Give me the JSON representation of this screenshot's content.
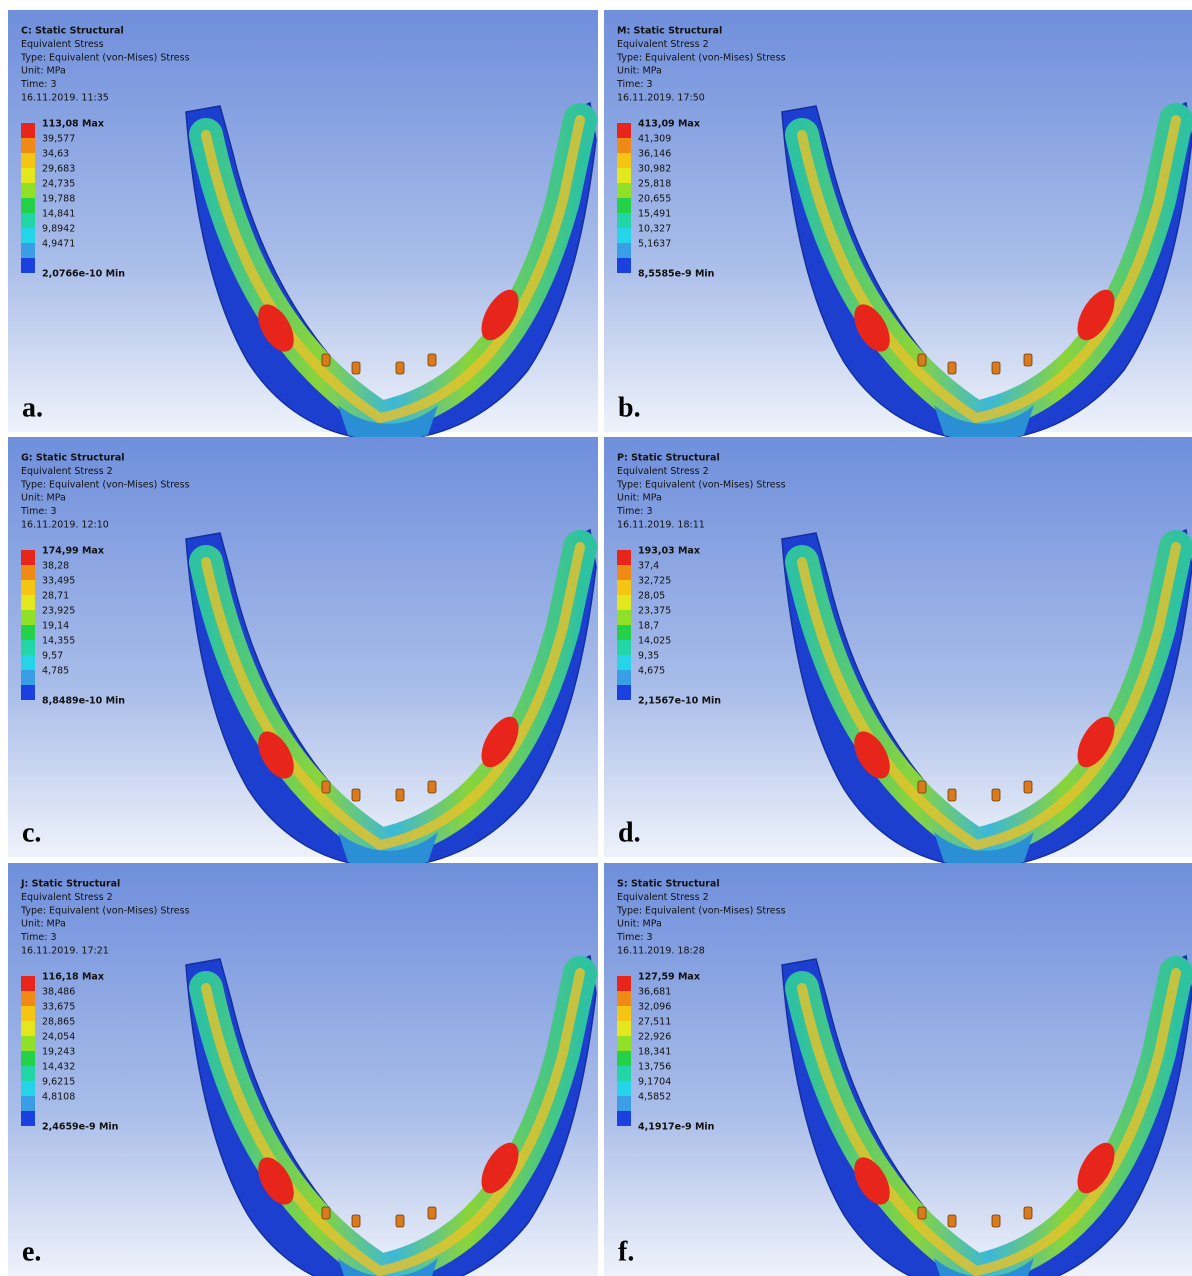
{
  "panels": [
    {
      "title": "C: Static Structural",
      "result": "Equivalent Stress",
      "type": "Type: Equivalent (von-Mises) Stress",
      "unit": "Unit: MPa",
      "time": "Time: 3",
      "date": "16.11.2019. 11:35",
      "max": "113,08 Max",
      "levels": [
        "39,577",
        "34,63",
        "29,683",
        "24,735",
        "19,788",
        "14,841",
        "9,8942",
        "4,9471"
      ],
      "min": "2,0766e-10 Min",
      "label": "a."
    },
    {
      "title": "M: Static Structural",
      "result": "Equivalent Stress 2",
      "type": "Type: Equivalent (von-Mises) Stress",
      "unit": "Unit: MPa",
      "time": "Time: 3",
      "date": "16.11.2019. 17:50",
      "max": "413,09 Max",
      "levels": [
        "41,309",
        "36,146",
        "30,982",
        "25,818",
        "20,655",
        "15,491",
        "10,327",
        "5,1637"
      ],
      "min": "8,5585e-9 Min",
      "label": "b."
    },
    {
      "title": "G: Static Structural",
      "result": "Equivalent Stress 2",
      "type": "Type: Equivalent (von-Mises) Stress",
      "unit": "Unit: MPa",
      "time": "Time: 3",
      "date": "16.11.2019. 12:10",
      "max": "174,99 Max",
      "levels": [
        "38,28",
        "33,495",
        "28,71",
        "23,925",
        "19,14",
        "14,355",
        "9,57",
        "4,785"
      ],
      "min": "8,8489e-10 Min",
      "label": "c."
    },
    {
      "title": "P: Static Structural",
      "result": "Equivalent Stress 2",
      "type": "Type: Equivalent (von-Mises) Stress",
      "unit": "Unit: MPa",
      "time": "Time: 3",
      "date": "16.11.2019. 18:11",
      "max": "193,03 Max",
      "levels": [
        "37,4",
        "32,725",
        "28,05",
        "23,375",
        "18,7",
        "14,025",
        "9,35",
        "4,675"
      ],
      "min": "2,1567e-10 Min",
      "label": "d."
    },
    {
      "title": "J: Static Structural",
      "result": "Equivalent Stress 2",
      "type": "Type: Equivalent (von-Mises) Stress",
      "unit": "Unit: MPa",
      "time": "Time: 3",
      "date": "16.11.2019. 17:21",
      "max": "116,18 Max",
      "levels": [
        "38,486",
        "33,675",
        "28,865",
        "24,054",
        "19,243",
        "14,432",
        "9,6215",
        "4,8108"
      ],
      "min": "2,4659e-9 Min",
      "label": "e."
    },
    {
      "title": "S: Static Structural",
      "result": "Equivalent Stress 2",
      "type": "Type: Equivalent (von-Mises) Stress",
      "unit": "Unit: MPa",
      "time": "Time: 3",
      "date": "16.11.2019. 18:28",
      "max": "127,59 Max",
      "levels": [
        "36,681",
        "32,096",
        "27,511",
        "22,926",
        "18,341",
        "13,756",
        "9,1704",
        "4,5852"
      ],
      "min": "4,1917e-9 Min",
      "label": "f."
    }
  ]
}
